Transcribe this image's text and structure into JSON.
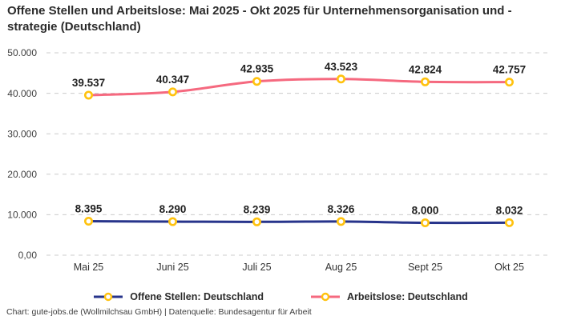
{
  "title": "Offene Stellen und Arbeitslose: Mai 2025 - Okt 2025 für Unternehmensorganisation und -strategie (Deutschland)",
  "footer": "Chart: gute-jobs.de (Wollmilchsau GmbH) | Datenquelle: Bundesagentur für Arbeit",
  "colors": {
    "open_positions_line": "#27348B",
    "unemployed_line": "#F5697F",
    "marker_ring": "#FFC20E",
    "marker_fill": "#FFFFFF",
    "gridline": "#CCCCCC",
    "axis_text": "#3F3F3F",
    "tick_text": "#333333",
    "data_label_text": "#1F1F1F"
  },
  "chart_data": {
    "type": "line",
    "title": "Offene Stellen und Arbeitslose: Mai 2025 - Okt 2025 für Unternehmensorganisation und -strategie (Deutschland)",
    "categories": [
      "Mai 25",
      "Juni 25",
      "Juli 25",
      "Aug 25",
      "Sept 25",
      "Okt 25"
    ],
    "series": [
      {
        "name": "Offene Stellen: Deutschland",
        "values": [
          8395,
          8290,
          8239,
          8326,
          8000,
          8032
        ],
        "labels": [
          "8.395",
          "8.290",
          "8.239",
          "8.326",
          "8.000",
          "8.032"
        ],
        "color_key": "open_positions_line"
      },
      {
        "name": "Arbeitslose: Deutschland",
        "values": [
          39537,
          40347,
          42935,
          43523,
          42824,
          42757
        ],
        "labels": [
          "39.537",
          "40.347",
          "42.935",
          "43.523",
          "42.824",
          "42.757"
        ],
        "color_key": "unemployed_line"
      }
    ],
    "y_ticks": [
      {
        "value": 0,
        "label": "0,00"
      },
      {
        "value": 10000,
        "label": "10.000"
      },
      {
        "value": 20000,
        "label": "20.000"
      },
      {
        "value": 30000,
        "label": "30.000"
      },
      {
        "value": 40000,
        "label": "40.000"
      },
      {
        "value": 50000,
        "label": "50.000"
      }
    ],
    "ylim": [
      0,
      50000
    ],
    "grid": "horizontal-dashed",
    "legend_position": "bottom",
    "marker_style": "open-circle-yellow"
  }
}
